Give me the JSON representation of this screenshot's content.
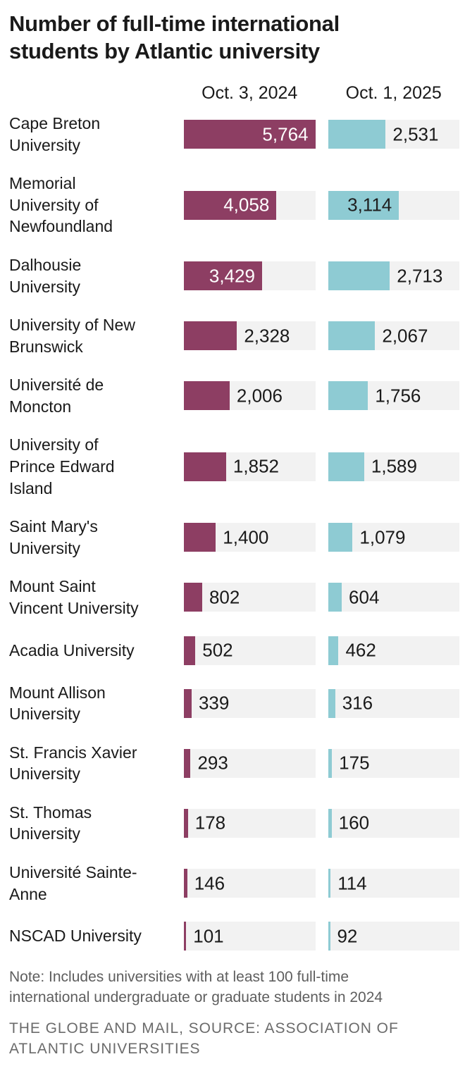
{
  "title": "Number of full-time international\nstudents by Atlantic university",
  "note": "Note: Includes universities with at least 100 full-time international undergraduate or graduate students in 2024",
  "source": "THE GLOBE AND MAIL, SOURCE: ASSOCIATION OF ATLANTIC UNIVERSITIES",
  "colors": {
    "bar_2024": "#8d3e63",
    "bar_2025": "#8ecbd3",
    "track": "#f2f2f2",
    "text": "#1a1a1a",
    "value_inside_2024": "#ffffff",
    "value_inside_2025": "#1f1f1f",
    "muted_text": "#5e5e5e",
    "background": "#ffffff"
  },
  "chart_data": {
    "type": "bar",
    "orientation": "horizontal",
    "title": "Number of full-time international students by Atlantic university",
    "xlabel": "",
    "ylabel": "",
    "xlim": [
      0,
      5764
    ],
    "max_value": 5764,
    "grid": false,
    "legend_position": "column-headers-top",
    "categories": [
      [
        "Cape Breton",
        "University"
      ],
      [
        "Memorial",
        "University of",
        "Newfoundland"
      ],
      [
        "Dalhousie",
        "University"
      ],
      [
        "University of New",
        "Brunswick"
      ],
      [
        "Université de",
        "Moncton"
      ],
      [
        "University of",
        "Prince Edward",
        "Island"
      ],
      [
        "Saint Mary's",
        "University"
      ],
      [
        "Mount Saint",
        "Vincent University"
      ],
      [
        "Acadia University"
      ],
      [
        "Mount Allison",
        "University"
      ],
      [
        "St. Francis Xavier",
        "University"
      ],
      [
        "St. Thomas",
        "University"
      ],
      [
        "Université Sainte-",
        "Anne"
      ],
      [
        "NSCAD University"
      ]
    ],
    "series": [
      {
        "name": "Oct. 3, 2024",
        "color": "#8d3e63",
        "value_color_inside": "#ffffff",
        "values": [
          5764,
          4058,
          3429,
          2328,
          2006,
          1852,
          1400,
          802,
          502,
          339,
          293,
          178,
          146,
          101
        ]
      },
      {
        "name": "Oct. 1, 2025",
        "color": "#8ecbd3",
        "value_color_inside": "#1f1f1f",
        "values": [
          2531,
          3114,
          2713,
          2067,
          1756,
          1589,
          1079,
          604,
          462,
          316,
          175,
          160,
          114,
          92
        ]
      }
    ]
  }
}
